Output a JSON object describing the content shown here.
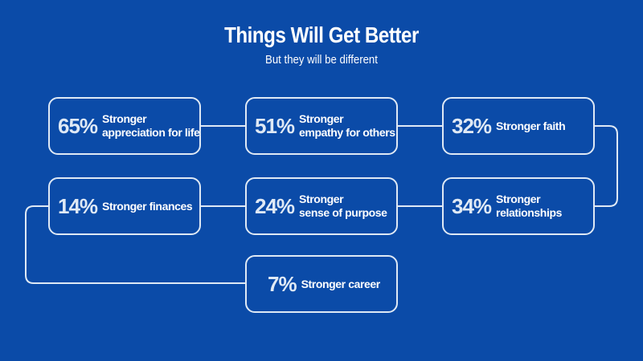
{
  "header": {
    "title": "Things Will Get Better",
    "subtitle": "But they will be different"
  },
  "items": [
    {
      "percent": "65%",
      "line1": "Stronger",
      "line2": "appreciation for life"
    },
    {
      "percent": "51%",
      "line1": "Stronger",
      "line2": "empathy for others"
    },
    {
      "percent": "32%",
      "line1": "Stronger faith",
      "line2": ""
    },
    {
      "percent": "34%",
      "line1": "Stronger",
      "line2": "relationships"
    },
    {
      "percent": "24%",
      "line1": "Stronger",
      "line2": "sense of purpose"
    },
    {
      "percent": "14%",
      "line1": "Stronger finances",
      "line2": ""
    },
    {
      "percent": "7%",
      "line1": "Stronger career",
      "line2": ""
    }
  ],
  "colors": {
    "background": "#0b4ba8",
    "border": "#dfe9f5",
    "text": "#ffffff"
  }
}
